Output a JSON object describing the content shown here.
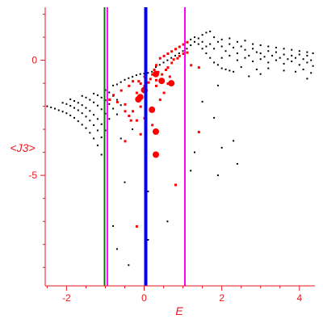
{
  "chart_data": {
    "type": "scatter",
    "title": "",
    "xlabel": "E",
    "ylabel": "<J3>",
    "xlim": [
      -2.55,
      4.4
    ],
    "ylim": [
      -9.8,
      2.3
    ],
    "x_ticks": [
      {
        "value": -2,
        "label": "-2"
      },
      {
        "value": 0,
        "label": "0"
      },
      {
        "value": 2,
        "label": "2"
      },
      {
        "value": 4,
        "label": "4"
      }
    ],
    "y_ticks": [
      {
        "value": 0,
        "label": "0"
      },
      {
        "value": -5,
        "label": "-5"
      }
    ],
    "grid": false,
    "legend": "none",
    "vertical_lines": [
      {
        "x": -1.02,
        "color": "#008000"
      },
      {
        "x": -0.95,
        "color": "#ff00ff"
      },
      {
        "x": 0.04,
        "color": "#0000ff"
      },
      {
        "x": 1.05,
        "color": "#ff00ff"
      }
    ],
    "series": [
      {
        "color": "#000000",
        "points": [
          [
            -2.5,
            -2.0
          ],
          [
            -2.4,
            -2.05
          ],
          [
            -2.3,
            -2.1
          ],
          [
            -2.2,
            -2.17
          ],
          [
            -2.1,
            -2.23
          ],
          [
            -2.0,
            -2.3
          ],
          [
            -1.9,
            -2.4
          ],
          [
            -1.8,
            -2.5
          ],
          [
            -1.7,
            -2.65
          ],
          [
            -1.6,
            -2.8
          ],
          [
            -1.5,
            -2.95
          ],
          [
            -1.4,
            -3.15
          ],
          [
            -1.3,
            -3.4
          ],
          [
            -1.2,
            -3.7
          ],
          [
            -1.1,
            -4.1
          ],
          [
            -2.1,
            -1.85
          ],
          [
            -2.0,
            -1.9
          ],
          [
            -1.9,
            -1.98
          ],
          [
            -1.8,
            -2.07
          ],
          [
            -1.7,
            -2.17
          ],
          [
            -1.6,
            -2.3
          ],
          [
            -1.5,
            -2.45
          ],
          [
            -1.4,
            -2.62
          ],
          [
            -1.3,
            -2.82
          ],
          [
            -1.2,
            -3.05
          ],
          [
            -1.1,
            -3.35
          ],
          [
            -1.9,
            -1.7
          ],
          [
            -1.8,
            -1.77
          ],
          [
            -1.7,
            -1.85
          ],
          [
            -1.6,
            -1.95
          ],
          [
            -1.5,
            -2.07
          ],
          [
            -1.4,
            -2.2
          ],
          [
            -1.3,
            -2.37
          ],
          [
            -1.2,
            -2.55
          ],
          [
            -1.1,
            -2.78
          ],
          [
            -1.0,
            -3.05
          ],
          [
            -1.6,
            -1.55
          ],
          [
            -1.5,
            -1.62
          ],
          [
            -1.4,
            -1.72
          ],
          [
            -1.3,
            -1.83
          ],
          [
            -1.2,
            -1.97
          ],
          [
            -1.1,
            -2.13
          ],
          [
            -1.0,
            -2.32
          ],
          [
            -0.9,
            -2.55
          ],
          [
            -1.3,
            -1.45
          ],
          [
            -1.2,
            -1.52
          ],
          [
            -1.1,
            -1.62
          ],
          [
            -1.0,
            -1.74
          ],
          [
            -0.9,
            -1.9
          ],
          [
            -0.8,
            -2.1
          ],
          [
            -0.7,
            -2.35
          ],
          [
            -1.0,
            -1.3
          ],
          [
            -0.9,
            -1.4
          ],
          [
            -0.8,
            -1.55
          ],
          [
            -0.7,
            -1.72
          ],
          [
            -0.6,
            -1.95
          ],
          [
            -0.8,
            -1.1
          ],
          [
            -0.7,
            -1.05
          ],
          [
            -0.6,
            -0.95
          ],
          [
            -0.5,
            -0.85
          ],
          [
            -0.4,
            -0.78
          ],
          [
            -0.3,
            -0.72
          ],
          [
            -0.2,
            -0.65
          ],
          [
            -0.1,
            -0.6
          ],
          [
            0.0,
            -0.58
          ],
          [
            0.1,
            -0.55
          ],
          [
            0.2,
            -0.5
          ],
          [
            0.3,
            -0.3
          ],
          [
            0.4,
            -0.2
          ],
          [
            0.5,
            -0.1
          ],
          [
            0.6,
            0.0
          ],
          [
            0.7,
            0.1
          ],
          [
            0.8,
            0.2
          ],
          [
            0.9,
            0.3
          ],
          [
            1.0,
            0.4
          ],
          [
            1.1,
            0.5
          ],
          [
            1.2,
            0.65
          ],
          [
            1.3,
            0.8
          ],
          [
            1.4,
            0.95
          ],
          [
            1.5,
            1.1
          ],
          [
            1.6,
            1.2
          ],
          [
            1.7,
            1.25
          ],
          [
            1.2,
            0.9
          ],
          [
            1.3,
            1.0
          ],
          [
            1.4,
            0.7
          ],
          [
            1.5,
            0.5
          ],
          [
            1.6,
            0.3
          ],
          [
            1.7,
            0.1
          ],
          [
            1.8,
            -0.1
          ],
          [
            1.9,
            -0.2
          ],
          [
            2.0,
            -0.35
          ],
          [
            2.1,
            -0.4
          ],
          [
            2.2,
            -0.45
          ],
          [
            2.3,
            -0.5
          ],
          [
            1.5,
            0.8
          ],
          [
            1.6,
            0.6
          ],
          [
            1.7,
            0.7
          ],
          [
            1.8,
            0.5
          ],
          [
            1.9,
            0.8
          ],
          [
            2.0,
            0.6
          ],
          [
            2.1,
            0.4
          ],
          [
            2.2,
            0.7
          ],
          [
            2.3,
            0.55
          ],
          [
            2.4,
            0.3
          ],
          [
            2.5,
            0.6
          ],
          [
            2.6,
            0.45
          ],
          [
            2.7,
            0.2
          ],
          [
            2.8,
            0.5
          ],
          [
            2.9,
            0.35
          ],
          [
            1.8,
            1.0
          ],
          [
            2.0,
            0.9
          ],
          [
            2.2,
            0.95
          ],
          [
            2.4,
            0.8
          ],
          [
            2.6,
            0.85
          ],
          [
            2.8,
            0.7
          ],
          [
            3.0,
            0.65
          ],
          [
            3.2,
            0.6
          ],
          [
            3.4,
            0.55
          ],
          [
            3.6,
            0.5
          ],
          [
            3.8,
            0.45
          ],
          [
            4.0,
            0.4
          ],
          [
            4.2,
            0.35
          ],
          [
            4.35,
            0.3
          ],
          [
            2.0,
            0.1
          ],
          [
            2.2,
            0.2
          ],
          [
            2.4,
            0.0
          ],
          [
            2.6,
            0.1
          ],
          [
            2.8,
            -0.05
          ],
          [
            3.0,
            0.05
          ],
          [
            3.2,
            -0.1
          ],
          [
            3.4,
            0.0
          ],
          [
            3.6,
            -0.15
          ],
          [
            3.8,
            -0.05
          ],
          [
            4.0,
            -0.2
          ],
          [
            4.2,
            -0.1
          ],
          [
            4.35,
            -0.25
          ],
          [
            3.0,
            0.3
          ],
          [
            3.1,
            0.15
          ],
          [
            3.2,
            0.4
          ],
          [
            3.3,
            0.2
          ],
          [
            3.4,
            0.35
          ],
          [
            3.5,
            0.1
          ],
          [
            3.6,
            0.25
          ],
          [
            3.7,
            0.05
          ],
          [
            3.8,
            0.2
          ],
          [
            3.9,
            0.1
          ],
          [
            4.0,
            0.25
          ],
          [
            4.1,
            0.05
          ],
          [
            4.2,
            0.2
          ],
          [
            4.3,
            0.0
          ],
          [
            2.5,
            -0.3
          ],
          [
            2.9,
            -0.4
          ],
          [
            3.2,
            -0.35
          ],
          [
            3.6,
            -0.45
          ],
          [
            3.9,
            -0.5
          ],
          [
            4.1,
            -0.4
          ],
          [
            4.3,
            -0.55
          ],
          [
            3.0,
            -0.6
          ],
          [
            2.7,
            -0.7
          ],
          [
            4.2,
            -0.8
          ],
          [
            1.9,
            -1.1
          ],
          [
            1.5,
            -1.8
          ],
          [
            1.8,
            -2.5
          ],
          [
            2.3,
            -3.5
          ],
          [
            2.0,
            -3.8
          ],
          [
            1.3,
            -4.0
          ],
          [
            2.4,
            -4.5
          ],
          [
            1.2,
            -4.8
          ],
          [
            1.9,
            -5.0
          ],
          [
            0.6,
            -7.0
          ],
          [
            -0.6,
            -3.4
          ],
          [
            -0.3,
            -3.0
          ],
          [
            -0.5,
            -5.3
          ],
          [
            0.1,
            -5.7
          ],
          [
            -0.8,
            -7.2
          ],
          [
            0.1,
            -7.8
          ],
          [
            -0.7,
            -8.2
          ],
          [
            -0.4,
            -8.9
          ]
        ]
      },
      {
        "color": "#ff0000",
        "points": [
          [
            -0.5,
            -1.9
          ],
          [
            -0.5,
            -2.2
          ],
          [
            -0.35,
            -2.6
          ],
          [
            -0.2,
            -1.4
          ],
          [
            -0.1,
            -1.0
          ],
          [
            -0.1,
            -2.0
          ],
          [
            0.0,
            -0.7
          ],
          [
            0.05,
            -1.3
          ],
          [
            0.3,
            -1.1
          ],
          [
            0.3,
            -0.85
          ],
          [
            0.35,
            -0.5
          ],
          [
            0.45,
            -0.6
          ],
          [
            0.55,
            -0.4
          ],
          [
            0.6,
            -0.3
          ],
          [
            0.7,
            -0.1
          ],
          [
            0.75,
            0.05
          ],
          [
            0.85,
            0.1
          ],
          [
            0.9,
            0.2
          ],
          [
            1.0,
            0.3
          ],
          [
            1.1,
            0.35
          ],
          [
            -0.8,
            -1.5
          ],
          [
            -0.6,
            -1.3
          ],
          [
            -0.4,
            -1.1
          ],
          [
            -0.3,
            -0.9
          ],
          [
            -0.7,
            -1.8
          ],
          [
            -0.9,
            -1.7
          ],
          [
            -0.4,
            -2.4
          ],
          [
            -0.3,
            -2.2
          ],
          [
            -0.2,
            -2.6
          ],
          [
            0.0,
            -2.5
          ],
          [
            0.2,
            -2.8
          ],
          [
            -0.1,
            -3.2
          ],
          [
            -0.5,
            -3.5
          ],
          [
            0.4,
            -1.7
          ],
          [
            0.5,
            -1.4
          ],
          [
            0.6,
            -1.0
          ],
          [
            0.65,
            -0.7
          ],
          [
            -0.15,
            -0.9
          ],
          [
            0.0,
            -1.1
          ],
          [
            0.1,
            -0.95
          ],
          [
            0.15,
            -0.8
          ],
          [
            0.2,
            -0.6
          ],
          [
            0.25,
            -0.4
          ],
          [
            0.3,
            -0.2
          ],
          [
            0.4,
            0.1
          ],
          [
            0.5,
            0.2
          ],
          [
            0.6,
            0.3
          ],
          [
            0.7,
            0.4
          ],
          [
            0.8,
            0.5
          ],
          [
            0.9,
            0.6
          ],
          [
            1.0,
            0.7
          ],
          [
            1.1,
            0.8
          ],
          [
            1.4,
            -3.1
          ],
          [
            0.8,
            -5.4
          ],
          [
            -0.2,
            -7.2
          ],
          [
            1.2,
            -0.2
          ],
          [
            1.4,
            -0.3
          ]
        ]
      }
    ],
    "large_red_markers": [
      [
        -0.1,
        -1.6
      ],
      [
        0.0,
        -1.3
      ],
      [
        0.2,
        -2.15
      ],
      [
        0.3,
        -3.1
      ],
      [
        0.3,
        -4.1
      ],
      [
        0.45,
        -0.9
      ],
      [
        0.7,
        -1.0
      ],
      [
        0.3,
        -0.6
      ],
      [
        -0.15,
        -1.7
      ]
    ]
  }
}
